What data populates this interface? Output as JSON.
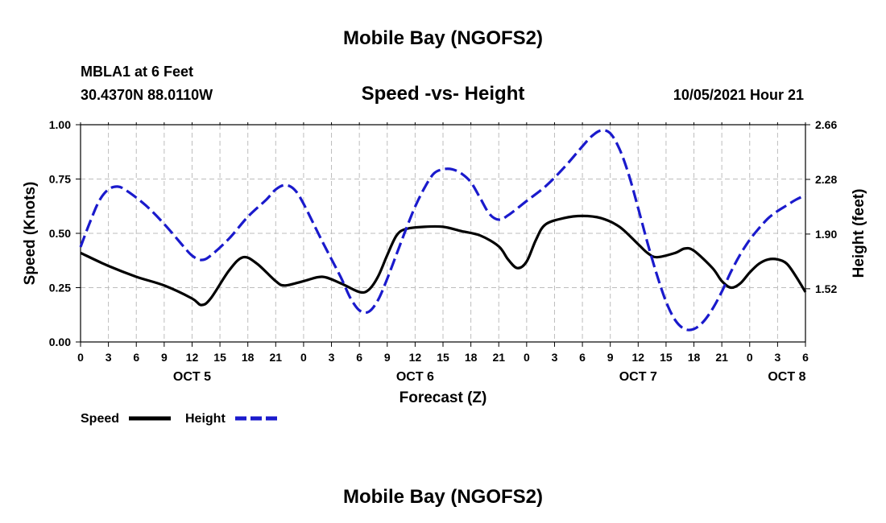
{
  "page": {
    "top_title": "Mobile Bay (NGOFS2)",
    "bottom_title": "Mobile Bay (NGOFS2)",
    "station": "MBLA1 at 6 Feet",
    "coords": "30.4370N  88.0110W",
    "datetime": "10/05/2021 Hour 21"
  },
  "chart_data": {
    "type": "line",
    "title": "Speed -vs- Height",
    "xlabel": "Forecast (Z)",
    "ylabel_left": "Speed (Knots)",
    "ylabel_right": "Height (feet)",
    "x_unit": "hours since OCT 5 00Z",
    "xlim": [
      0,
      78
    ],
    "ylim_left": [
      0,
      1.0
    ],
    "ylim_right": [
      1.15,
      2.66
    ],
    "left_ticks": [
      "0.00",
      "0.25",
      "0.50",
      "0.75",
      "1.00"
    ],
    "right_ticks": [
      "1.52",
      "1.90",
      "2.28",
      "2.66"
    ],
    "right_tick_values": [
      1.52,
      1.9,
      2.28,
      2.66
    ],
    "x_ticks": [
      0,
      3,
      6,
      9,
      12,
      15,
      18,
      21,
      24,
      27,
      30,
      33,
      36,
      39,
      42,
      45,
      48,
      51,
      54,
      57,
      60,
      63,
      66,
      69,
      72,
      75,
      78
    ],
    "x_tick_labels": [
      "0",
      "3",
      "6",
      "9",
      "12",
      "15",
      "18",
      "21",
      "0",
      "3",
      "6",
      "9",
      "12",
      "15",
      "18",
      "21",
      "0",
      "3",
      "6",
      "9",
      "12",
      "15",
      "18",
      "21",
      "0",
      "3",
      "6"
    ],
    "day_labels": [
      {
        "label": "OCT 5",
        "hour": 12
      },
      {
        "label": "OCT 6",
        "hour": 36
      },
      {
        "label": "OCT 7",
        "hour": 60
      },
      {
        "label": "OCT 8",
        "hour": 76
      }
    ],
    "grid": true,
    "legend": [
      {
        "name": "Speed",
        "color": "#000000",
        "dash": "solid"
      },
      {
        "name": "Height",
        "color": "#1a1acc",
        "dash": "dashed"
      }
    ],
    "series": [
      {
        "name": "Speed",
        "axis": "left",
        "color": "#000000",
        "points": [
          [
            0,
            0.41
          ],
          [
            3,
            0.35
          ],
          [
            6,
            0.3
          ],
          [
            9,
            0.26
          ],
          [
            12,
            0.2
          ],
          [
            13,
            0.17
          ],
          [
            14,
            0.2
          ],
          [
            16,
            0.33
          ],
          [
            17.5,
            0.39
          ],
          [
            19,
            0.36
          ],
          [
            21,
            0.28
          ],
          [
            22,
            0.26
          ],
          [
            24,
            0.28
          ],
          [
            26,
            0.3
          ],
          [
            28,
            0.27
          ],
          [
            30,
            0.23
          ],
          [
            31,
            0.24
          ],
          [
            32,
            0.3
          ],
          [
            33,
            0.4
          ],
          [
            34,
            0.49
          ],
          [
            35,
            0.52
          ],
          [
            37,
            0.53
          ],
          [
            39,
            0.53
          ],
          [
            41,
            0.51
          ],
          [
            43,
            0.49
          ],
          [
            45,
            0.44
          ],
          [
            46,
            0.38
          ],
          [
            47,
            0.34
          ],
          [
            48,
            0.37
          ],
          [
            49,
            0.47
          ],
          [
            50,
            0.54
          ],
          [
            52,
            0.57
          ],
          [
            54,
            0.58
          ],
          [
            56,
            0.57
          ],
          [
            58,
            0.53
          ],
          [
            60,
            0.45
          ],
          [
            61,
            0.41
          ],
          [
            62,
            0.39
          ],
          [
            64,
            0.41
          ],
          [
            65,
            0.43
          ],
          [
            66,
            0.42
          ],
          [
            68,
            0.34
          ],
          [
            69,
            0.28
          ],
          [
            70,
            0.25
          ],
          [
            71,
            0.27
          ],
          [
            72,
            0.32
          ],
          [
            73,
            0.36
          ],
          [
            74,
            0.38
          ],
          [
            75,
            0.38
          ],
          [
            76,
            0.36
          ],
          [
            77,
            0.3
          ],
          [
            78,
            0.23
          ]
        ]
      },
      {
        "name": "Height",
        "axis": "right",
        "color": "#1a1acc",
        "points": [
          [
            0,
            1.81
          ],
          [
            1,
            1.98
          ],
          [
            2,
            2.13
          ],
          [
            3,
            2.21
          ],
          [
            4,
            2.23
          ],
          [
            5,
            2.2
          ],
          [
            7,
            2.1
          ],
          [
            9,
            1.97
          ],
          [
            11,
            1.82
          ],
          [
            12,
            1.75
          ],
          [
            13,
            1.72
          ],
          [
            14,
            1.75
          ],
          [
            16,
            1.87
          ],
          [
            18,
            2.02
          ],
          [
            20,
            2.14
          ],
          [
            21,
            2.21
          ],
          [
            22,
            2.24
          ],
          [
            23,
            2.21
          ],
          [
            24,
            2.11
          ],
          [
            26,
            1.85
          ],
          [
            28,
            1.6
          ],
          [
            29,
            1.46
          ],
          [
            30,
            1.37
          ],
          [
            31,
            1.36
          ],
          [
            32,
            1.44
          ],
          [
            33,
            1.59
          ],
          [
            34,
            1.76
          ],
          [
            35,
            1.93
          ],
          [
            36,
            2.09
          ],
          [
            37,
            2.22
          ],
          [
            38,
            2.32
          ],
          [
            39,
            2.35
          ],
          [
            40,
            2.35
          ],
          [
            41,
            2.32
          ],
          [
            42,
            2.26
          ],
          [
            43,
            2.15
          ],
          [
            44,
            2.04
          ],
          [
            45,
            2.0
          ],
          [
            46,
            2.03
          ],
          [
            48,
            2.13
          ],
          [
            50,
            2.23
          ],
          [
            52,
            2.36
          ],
          [
            54,
            2.51
          ],
          [
            55,
            2.58
          ],
          [
            56,
            2.62
          ],
          [
            57,
            2.6
          ],
          [
            58,
            2.49
          ],
          [
            59,
            2.31
          ],
          [
            60,
            2.08
          ],
          [
            61,
            1.84
          ],
          [
            62,
            1.62
          ],
          [
            63,
            1.43
          ],
          [
            64,
            1.3
          ],
          [
            65,
            1.24
          ],
          [
            66,
            1.24
          ],
          [
            67,
            1.29
          ],
          [
            68,
            1.38
          ],
          [
            69,
            1.5
          ],
          [
            70,
            1.64
          ],
          [
            71,
            1.76
          ],
          [
            72,
            1.86
          ],
          [
            73,
            1.94
          ],
          [
            74,
            2.01
          ],
          [
            75,
            2.06
          ],
          [
            76,
            2.1
          ],
          [
            77,
            2.14
          ],
          [
            78,
            2.17
          ]
        ]
      }
    ]
  }
}
